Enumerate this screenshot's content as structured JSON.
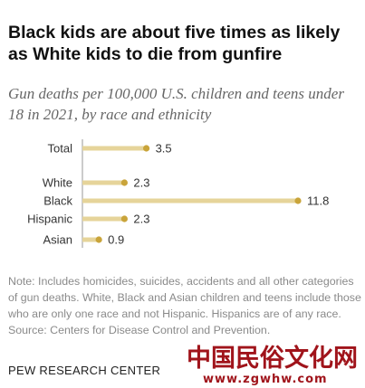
{
  "header": {
    "title": "Black kids are about five times as likely as White kids to die from gunfire",
    "subtitle": "Gun deaths per 100,000 U.S. children and teens under 18 in 2021, by race and ethnicity"
  },
  "chart_data": {
    "type": "bar",
    "orientation": "horizontal",
    "categories": [
      "Total",
      "White",
      "Black",
      "Hispanic",
      "Asian"
    ],
    "values": [
      3.5,
      2.3,
      11.8,
      2.3,
      0.9
    ],
    "value_labels": [
      "3.5",
      "2.3",
      "11.8",
      "2.3",
      "0.9"
    ],
    "title": "Black kids are about five times as likely as White kids to die from gunfire",
    "subtitle": "Gun deaths per 100,000 U.S. children and teens under 18 in 2021, by race and ethnicity",
    "xlim": [
      0,
      11.8
    ],
    "grid": false,
    "bar_color": "#e6d49a",
    "dot_color": "#c9a43a"
  },
  "footer": {
    "note": "Note: Includes homicides, suicides, accidents and all other categories of gun deaths. White, Black and Asian children and teens include those who are only one race and not Hispanic. Hispanics are of any race.",
    "source": "Source: Centers for Disease Control and Prevention.",
    "org": "PEW RESEARCH CENTER"
  },
  "watermark": {
    "text": "中国民俗文化网",
    "url": "www.zgwhw.com"
  },
  "colors": {
    "axis": "#999999",
    "text": "#333333",
    "note": "#8a8a8a",
    "watermark": "#a0141b"
  }
}
